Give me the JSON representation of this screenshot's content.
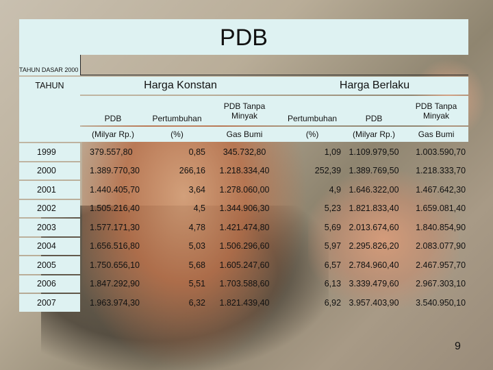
{
  "slide": {
    "title": "PDB",
    "base_year_label": "TAHUN DASAR 2000",
    "page_number": "9"
  },
  "table": {
    "year_header": "TAHUN",
    "group_konstan": "Harga Konstan",
    "group_berlaku": "Harga Berlaku",
    "columns": [
      {
        "label": "PDB",
        "unit": "(Milyar Rp.)"
      },
      {
        "label": "Pertumbuhan",
        "unit": "(%)"
      },
      {
        "label": "PDB Tanpa Minyak",
        "unit": "Gas Bumi"
      },
      {
        "label": "Pertumbuhan",
        "unit": "(%)"
      },
      {
        "label": "PDB",
        "unit": "(Milyar Rp.)"
      },
      {
        "label": "PDB Tanpa Minyak",
        "unit": "Gas Bumi"
      }
    ],
    "rows": [
      {
        "year": "1999",
        "values": [
          "379.557,80",
          "0,85",
          "345.732,80",
          "1,09",
          "1.109.979,50",
          "1.003.590,70"
        ]
      },
      {
        "year": "2000",
        "values": [
          "1.389.770,30",
          "266,16",
          "1.218.334,40",
          "252,39",
          "1.389.769,50",
          "1.218.333,70"
        ]
      },
      {
        "year": "2001",
        "values": [
          "1.440.405,70",
          "3,64",
          "1.278.060,00",
          "4,9",
          "1.646.322,00",
          "1.467.642,30"
        ]
      },
      {
        "year": "2002",
        "values": [
          "1.505.216,40",
          "4,5",
          "1.344.906,30",
          "5,23",
          "1.821.833,40",
          "1.659.081,40"
        ]
      },
      {
        "year": "2003",
        "values": [
          "1.577.171,30",
          "4,78",
          "1.421.474,80",
          "5,69",
          "2.013.674,60",
          "1.840.854,90"
        ]
      },
      {
        "year": "2004",
        "values": [
          "1.656.516,80",
          "5,03",
          "1.506.296,60",
          "5,97",
          "2.295.826,20",
          "2.083.077,90"
        ]
      },
      {
        "year": "2005",
        "values": [
          "1.750.656,10",
          "5,68",
          "1.605.247,60",
          "6,57",
          "2.784.960,40",
          "2.467.957,70"
        ]
      },
      {
        "year": "2006",
        "values": [
          "1.847.292,90",
          "5,51",
          "1.703.588,60",
          "6,13",
          "3.339.479,60",
          "2.967.303,10"
        ]
      },
      {
        "year": "2007",
        "values": [
          "1.963.974,30",
          "6,32",
          "1.821.439,40",
          "6,92",
          "3.957.403,90",
          "3.540.950,10"
        ]
      }
    ]
  },
  "colors": {
    "header_fill": "#def2f2",
    "text": "#111111"
  }
}
